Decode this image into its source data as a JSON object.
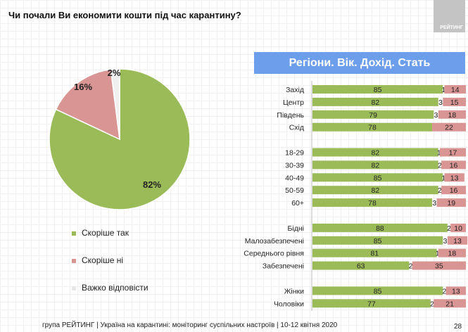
{
  "title": "Чи почали Ви економити кошти під час карантину?",
  "logo_text": "РЕЙТИНГ",
  "banner": "Регіони. Вік. Дохід. Стать",
  "footer": "група РЕЙТИНГ | Україна на карантині: моніторинг суспільних настроїв  | 10-12 квітня  2020",
  "page_number": "28",
  "colors": {
    "yes": "#9bbb59",
    "no": "#d99594",
    "hard": "#f0f0f0"
  },
  "chart_data": [
    {
      "type": "pie",
      "slices": [
        {
          "name": "Скоріше так",
          "value": 82,
          "label": "82%"
        },
        {
          "name": "Скоріше ні",
          "value": 16,
          "label": "16%"
        },
        {
          "name": "Важко відповісти",
          "value": 2,
          "label": "2%"
        }
      ],
      "legend": [
        "Скоріше так",
        "Скоріше ні",
        "Важко відповісти"
      ],
      "legend_placement": "bottom-left"
    },
    {
      "type": "bar",
      "stacked": true,
      "orientation": "horizontal",
      "xlim": [
        0,
        100
      ],
      "categories": [
        "Захід",
        "Центр",
        "Південь",
        "Схід",
        "",
        "18-29",
        "30-39",
        "40-49",
        "50-59",
        "60+",
        "",
        "Бідні",
        "Малозабезпечені",
        "Середнього рівня",
        "Забезпечені",
        "",
        "Жінки",
        "Чоловіки"
      ],
      "series": [
        {
          "name": "Скоріше так",
          "values": [
            85,
            82,
            79,
            78,
            null,
            82,
            82,
            85,
            82,
            78,
            null,
            88,
            85,
            81,
            63,
            null,
            85,
            77
          ]
        },
        {
          "name": "Важко відповісти",
          "values": [
            1,
            3,
            3,
            0,
            null,
            1,
            2,
            1,
            2,
            3,
            null,
            2,
            3,
            1,
            2,
            null,
            2,
            2
          ]
        },
        {
          "name": "Скоріше ні",
          "values": [
            14,
            15,
            18,
            22,
            null,
            17,
            16,
            13,
            16,
            19,
            null,
            10,
            13,
            18,
            35,
            null,
            13,
            21
          ]
        }
      ]
    }
  ]
}
